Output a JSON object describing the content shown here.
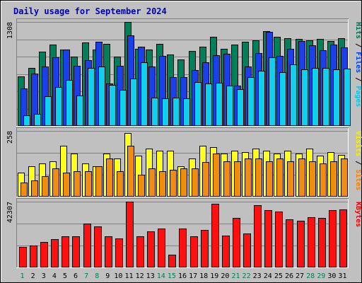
{
  "chart_data": {
    "type": "bar",
    "title": "Daily usage for September 2024",
    "categories": [
      "1",
      "2",
      "3",
      "4",
      "5",
      "6",
      "7",
      "8",
      "9",
      "10",
      "11",
      "12",
      "13",
      "14",
      "15",
      "16",
      "17",
      "18",
      "19",
      "20",
      "21",
      "22",
      "23",
      "24",
      "25",
      "26",
      "27",
      "28",
      "29",
      "30",
      "31"
    ],
    "weekend_categories": [
      "1",
      "7",
      "8",
      "14",
      "15",
      "21",
      "22",
      "28",
      "29"
    ],
    "panels": [
      {
        "id": "hits-files-pages",
        "max_label": "1308",
        "ylim": [
          0,
          1308
        ],
        "grid": true,
        "legend": [
          {
            "text": "Pages",
            "color": "#00c8e8"
          },
          {
            "text": "Files",
            "color": "#0040f0"
          },
          {
            "text": "Hits",
            "color": "#007050"
          }
        ],
        "series": [
          {
            "name": "Hits",
            "color": "#00805a",
            "values": [
              620,
              730,
              930,
              1020,
              960,
              870,
              1050,
              960,
              1030,
              870,
              1308,
              970,
              960,
              1030,
              900,
              840,
              940,
              1000,
              1120,
              970,
              1020,
              1060,
              1080,
              1190,
              1120,
              1100,
              1090,
              1080,
              1090,
              1070,
              1100
            ]
          },
          {
            "name": "Files",
            "color": "#1a40ec",
            "values": [
              470,
              660,
              750,
              860,
              960,
              760,
              830,
              1060,
              530,
              760,
              1140,
              1000,
              750,
              880,
              610,
              610,
              700,
              800,
              890,
              910,
              510,
              750,
              920,
              1180,
              880,
              970,
              1070,
              1010,
              950,
              1020,
              990
            ]
          },
          {
            "name": "Pages",
            "color": "#10d0f0",
            "values": [
              130,
              150,
              370,
              490,
              580,
              380,
              730,
              750,
              520,
              450,
              600,
              800,
              360,
              350,
              360,
              350,
              550,
              530,
              540,
              510,
              460,
              610,
              690,
              860,
              680,
              770,
              710,
              730,
              730,
              710,
              720
            ]
          }
        ]
      },
      {
        "id": "visits-sites",
        "max_label": "258",
        "ylim": [
          0,
          258
        ],
        "grid": true,
        "legend": [
          {
            "text": "Sites",
            "color": "#f08000"
          },
          {
            "text": "Visits",
            "color": "#f8f000"
          }
        ],
        "series": [
          {
            "name": "Visits",
            "color": "#ffff20",
            "values": [
              95,
              120,
              130,
              140,
              200,
              170,
              130,
              120,
              170,
              150,
              250,
              160,
              190,
              180,
              180,
              120,
              150,
              200,
              195,
              170,
              180,
              175,
              190,
              180,
              170,
              180,
              170,
              190,
              160,
              175,
              165
            ]
          },
          {
            "name": "Sites",
            "color": "#f08c10",
            "values": [
              55,
              65,
              80,
              110,
              95,
              100,
              100,
              120,
              150,
              100,
              200,
              85,
              110,
              100,
              105,
              110,
              110,
              135,
              170,
              140,
              140,
              150,
              150,
              140,
              150,
              140,
              150,
              140,
              130,
              140,
              150
            ]
          }
        ]
      },
      {
        "id": "kbytes",
        "max_label": "42307",
        "ylim": [
          0,
          42307
        ],
        "grid": true,
        "legend": [
          {
            "text": "KBytes",
            "color": "#f00000"
          }
        ],
        "series": [
          {
            "name": "KBytes",
            "color": "#ff1010",
            "values": [
              13000,
              14000,
              16500,
              18000,
              20000,
              20000,
              28000,
              26500,
              20000,
              18500,
              42307,
              20000,
              23000,
              25000,
              8000,
              25000,
              20000,
              24000,
              41000,
              20500,
              32000,
              22000,
              40000,
              37000,
              36000,
              31000,
              30000,
              32500,
              32000,
              37000,
              37500
            ]
          }
        ]
      }
    ]
  }
}
